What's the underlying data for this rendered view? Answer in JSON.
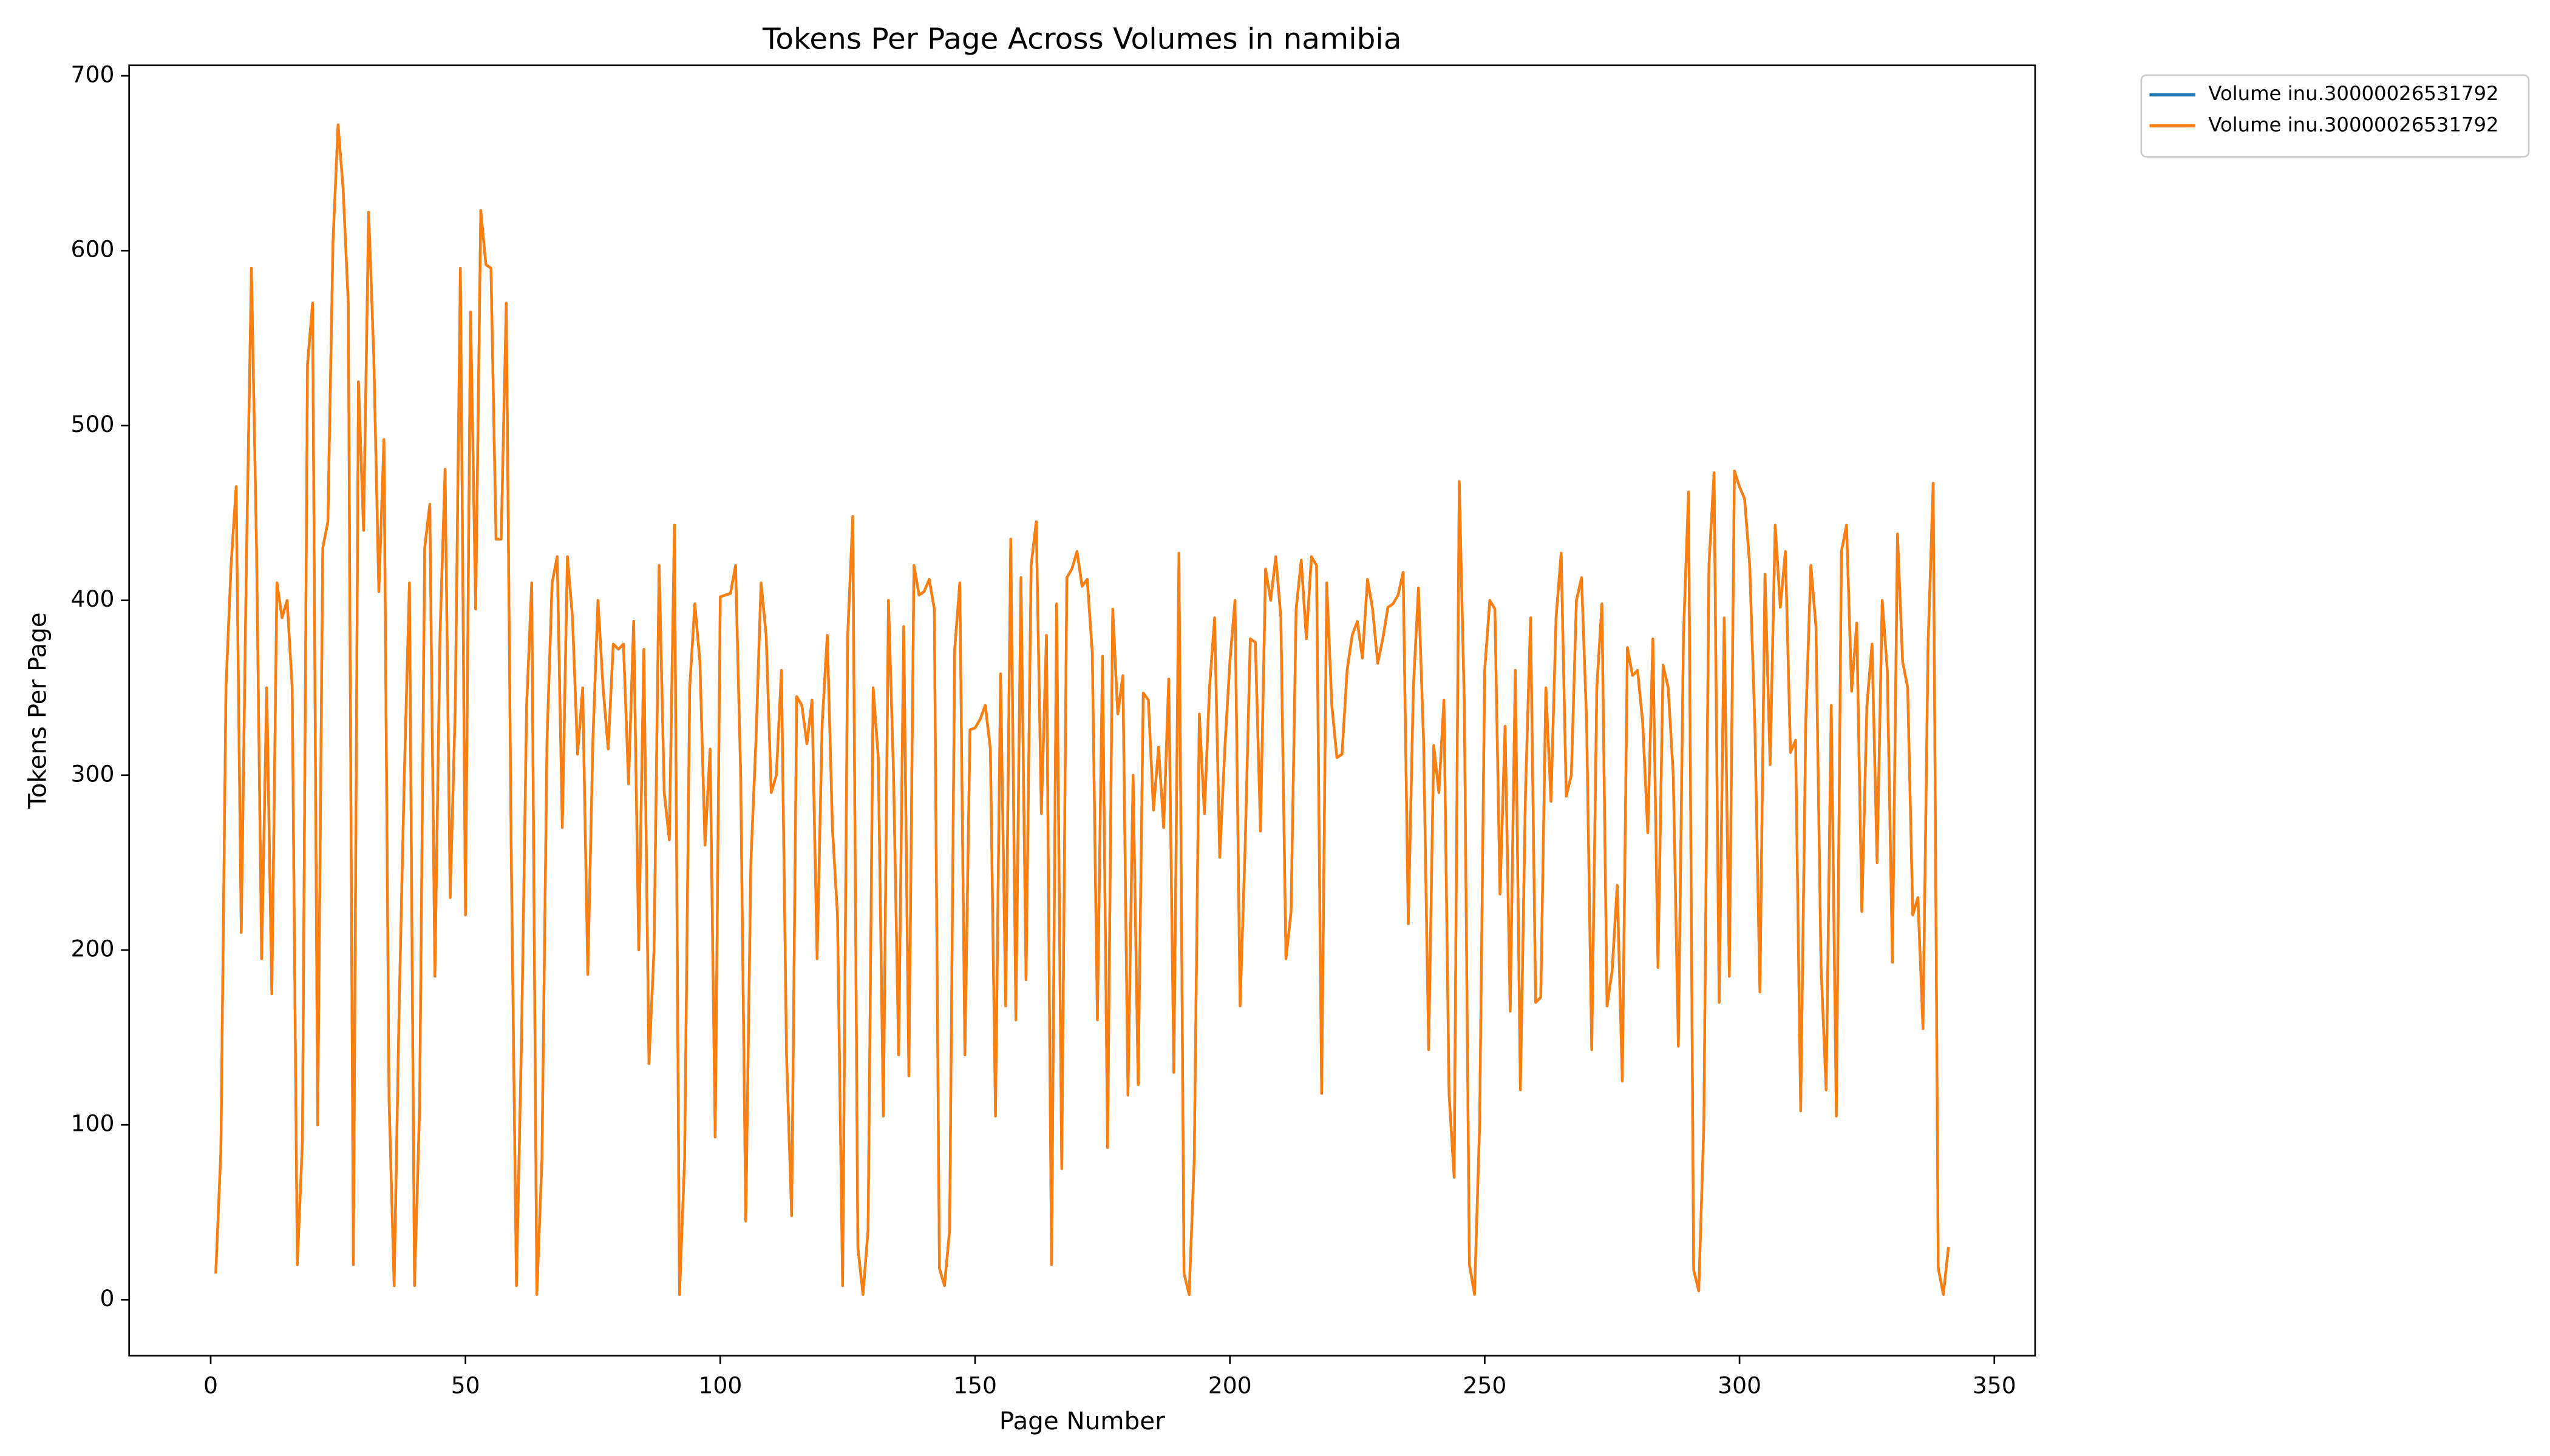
{
  "chart_data": {
    "type": "line",
    "title": "Tokens Per Page Across Volumes in namibia",
    "x_label": "Page Number",
    "y_label": "Tokens Per Page",
    "legend": "upper right outside",
    "xlim": [
      -16,
      358
    ],
    "ylim": [
      -32,
      706
    ],
    "xticks": [
      0,
      50,
      100,
      150,
      200,
      250,
      300,
      350
    ],
    "yticks": [
      0,
      100,
      200,
      300,
      400,
      500,
      600,
      700
    ],
    "x": [
      1,
      2,
      3,
      4,
      5,
      6,
      7,
      8,
      9,
      10,
      11,
      12,
      13,
      14,
      15,
      16,
      17,
      18,
      19,
      20,
      21,
      22,
      23,
      24,
      25,
      26,
      27,
      28,
      29,
      30,
      31,
      32,
      33,
      34,
      35,
      36,
      37,
      38,
      39,
      40,
      41,
      42,
      43,
      44,
      45,
      46,
      47,
      48,
      49,
      50,
      51,
      52,
      53,
      54,
      55,
      56,
      57,
      58,
      59,
      60,
      61,
      62,
      63,
      64,
      65,
      66,
      67,
      68,
      69,
      70,
      71,
      72,
      73,
      74,
      75,
      76,
      77,
      78,
      79,
      80,
      81,
      82,
      83,
      84,
      85,
      86,
      87,
      88,
      89,
      90,
      91,
      92,
      93,
      94,
      95,
      96,
      97,
      98,
      99,
      100,
      101,
      102,
      103,
      104,
      105,
      106,
      107,
      108,
      109,
      110,
      111,
      112,
      113,
      114,
      115,
      116,
      117,
      118,
      119,
      120,
      121,
      122,
      123,
      124,
      125,
      126,
      127,
      128,
      129,
      130,
      131,
      132,
      133,
      134,
      135,
      136,
      137,
      138,
      139,
      140,
      141,
      142,
      143,
      144,
      145,
      146,
      147,
      148,
      149,
      150,
      151,
      152,
      153,
      154,
      155,
      156,
      157,
      158,
      159,
      160,
      161,
      162,
      163,
      164,
      165,
      166,
      167,
      168,
      169,
      170,
      171,
      172,
      173,
      174,
      175,
      176,
      177,
      178,
      179,
      180,
      181,
      182,
      183,
      184,
      185,
      186,
      187,
      188,
      189,
      190,
      191,
      192,
      193,
      194,
      195,
      196,
      197,
      198,
      199,
      200,
      201,
      202,
      203,
      204,
      205,
      206,
      207,
      208,
      209,
      210,
      211,
      212,
      213,
      214,
      215,
      216,
      217,
      218,
      219,
      220,
      221,
      222,
      223,
      224,
      225,
      226,
      227,
      228,
      229,
      230,
      231,
      232,
      233,
      234,
      235,
      236,
      237,
      238,
      239,
      240,
      241,
      242,
      243,
      244,
      245,
      246,
      247,
      248,
      249,
      250,
      251,
      252,
      253,
      254,
      255,
      256,
      257,
      258,
      259,
      260,
      261,
      262,
      263,
      264,
      265,
      266,
      267,
      268,
      269,
      270,
      271,
      272,
      273,
      274,
      275,
      276,
      277,
      278,
      279,
      280,
      281,
      282,
      283,
      284,
      285,
      286,
      287,
      288,
      289,
      290,
      291,
      292,
      293,
      294,
      295,
      296,
      297,
      298,
      299,
      300,
      301,
      302,
      303,
      304,
      305,
      306,
      307,
      308,
      309,
      310,
      311,
      312,
      313,
      314,
      315,
      316,
      317,
      318,
      319,
      320,
      321,
      322,
      323,
      324,
      325,
      326,
      327,
      328,
      329,
      330,
      331,
      332,
      333,
      334,
      335,
      336,
      337,
      338,
      339,
      340,
      341
    ],
    "series": [
      {
        "name": "Volume inu.30000026531792",
        "color": "#1f77b4",
        "values": [
          15,
          85,
          350,
          420,
          465,
          210,
          420,
          590,
          430,
          195,
          350,
          175,
          410,
          390,
          400,
          350,
          20,
          90,
          535,
          570,
          100,
          430,
          445,
          605,
          672,
          635,
          570,
          20,
          525,
          440,
          622,
          540,
          405,
          492,
          115,
          8,
          170,
          300,
          410,
          8,
          110,
          430,
          455,
          185,
          380,
          475,
          230,
          340,
          590,
          220,
          565,
          395,
          623,
          592,
          590,
          435,
          435,
          570,
          250,
          8,
          150,
          340,
          410,
          3,
          80,
          320,
          410,
          425,
          270,
          425,
          390,
          312,
          350,
          186,
          320,
          400,
          350,
          315,
          375,
          372,
          375,
          295,
          388,
          200,
          372,
          135,
          200,
          420,
          290,
          263,
          443,
          3,
          80,
          350,
          398,
          365,
          260,
          315,
          93,
          402,
          403,
          404,
          420,
          300,
          45,
          250,
          320,
          410,
          380,
          290,
          300,
          360,
          140,
          48,
          345,
          340,
          318,
          343,
          195,
          330,
          380,
          270,
          220,
          8,
          380,
          448,
          30,
          3,
          40,
          350,
          310,
          105,
          400,
          300,
          140,
          385,
          128,
          420,
          403,
          405,
          412,
          395,
          18,
          8,
          40,
          372,
          410,
          140,
          326,
          327,
          332,
          340,
          315,
          105,
          358,
          168,
          435,
          160,
          413,
          183,
          420,
          445,
          278,
          380,
          20,
          398,
          75,
          413,
          418,
          428,
          408,
          412,
          370,
          160,
          368,
          87,
          395,
          335,
          357,
          117,
          300,
          123,
          347,
          343,
          280,
          316,
          270,
          355,
          130,
          427,
          15,
          3,
          80,
          335,
          278,
          350,
          390,
          253,
          315,
          365,
          400,
          168,
          260,
          378,
          376,
          268,
          418,
          400,
          425,
          390,
          195,
          222,
          395,
          423,
          378,
          425,
          420,
          118,
          410,
          340,
          310,
          312,
          360,
          380,
          388,
          367,
          412,
          395,
          364,
          378,
          396,
          398,
          403,
          416,
          215,
          350,
          407,
          320,
          143,
          317,
          290,
          343,
          118,
          70,
          468,
          340,
          20,
          3,
          100,
          360,
          400,
          395,
          232,
          328,
          165,
          360,
          120,
          290,
          390,
          170,
          173,
          350,
          285,
          390,
          427,
          288,
          300,
          400,
          413,
          330,
          143,
          350,
          398,
          168,
          188,
          237,
          125,
          373,
          357,
          360,
          330,
          267,
          378,
          190,
          363,
          350,
          300,
          145,
          380,
          462,
          17,
          5,
          100,
          420,
          473,
          170,
          390,
          185,
          474,
          465,
          458,
          420,
          330,
          176,
          415,
          306,
          443,
          396,
          428,
          313,
          320,
          108,
          330,
          420,
          385,
          190,
          120,
          340,
          105,
          428,
          443,
          348,
          387,
          222,
          340,
          375,
          250,
          400,
          360,
          193,
          438,
          365,
          350,
          220,
          230,
          155,
          375,
          467,
          18,
          3,
          30
        ]
      },
      {
        "name": "Volume inu.30000026531792",
        "color": "#ff7f0e",
        "values": [
          15,
          85,
          350,
          420,
          465,
          210,
          420,
          590,
          430,
          195,
          350,
          175,
          410,
          390,
          400,
          350,
          20,
          90,
          535,
          570,
          100,
          430,
          445,
          605,
          672,
          635,
          570,
          20,
          525,
          440,
          622,
          540,
          405,
          492,
          115,
          8,
          170,
          300,
          410,
          8,
          110,
          430,
          455,
          185,
          380,
          475,
          230,
          340,
          590,
          220,
          565,
          395,
          623,
          592,
          590,
          435,
          435,
          570,
          250,
          8,
          150,
          340,
          410,
          3,
          80,
          320,
          410,
          425,
          270,
          425,
          390,
          312,
          350,
          186,
          320,
          400,
          350,
          315,
          375,
          372,
          375,
          295,
          388,
          200,
          372,
          135,
          200,
          420,
          290,
          263,
          443,
          3,
          80,
          350,
          398,
          365,
          260,
          315,
          93,
          402,
          403,
          404,
          420,
          300,
          45,
          250,
          320,
          410,
          380,
          290,
          300,
          360,
          140,
          48,
          345,
          340,
          318,
          343,
          195,
          330,
          380,
          270,
          220,
          8,
          380,
          448,
          30,
          3,
          40,
          350,
          310,
          105,
          400,
          300,
          140,
          385,
          128,
          420,
          403,
          405,
          412,
          395,
          18,
          8,
          40,
          372,
          410,
          140,
          326,
          327,
          332,
          340,
          315,
          105,
          358,
          168,
          435,
          160,
          413,
          183,
          420,
          445,
          278,
          380,
          20,
          398,
          75,
          413,
          418,
          428,
          408,
          412,
          370,
          160,
          368,
          87,
          395,
          335,
          357,
          117,
          300,
          123,
          347,
          343,
          280,
          316,
          270,
          355,
          130,
          427,
          15,
          3,
          80,
          335,
          278,
          350,
          390,
          253,
          315,
          365,
          400,
          168,
          260,
          378,
          376,
          268,
          418,
          400,
          425,
          390,
          195,
          222,
          395,
          423,
          378,
          425,
          420,
          118,
          410,
          340,
          310,
          312,
          360,
          380,
          388,
          367,
          412,
          395,
          364,
          378,
          396,
          398,
          403,
          416,
          215,
          350,
          407,
          320,
          143,
          317,
          290,
          343,
          118,
          70,
          468,
          340,
          20,
          3,
          100,
          360,
          400,
          395,
          232,
          328,
          165,
          360,
          120,
          290,
          390,
          170,
          173,
          350,
          285,
          390,
          427,
          288,
          300,
          400,
          413,
          330,
          143,
          350,
          398,
          168,
          188,
          237,
          125,
          373,
          357,
          360,
          330,
          267,
          378,
          190,
          363,
          350,
          300,
          145,
          380,
          462,
          17,
          5,
          100,
          420,
          473,
          170,
          390,
          185,
          474,
          465,
          458,
          420,
          330,
          176,
          415,
          306,
          443,
          396,
          428,
          313,
          320,
          108,
          330,
          420,
          385,
          190,
          120,
          340,
          105,
          428,
          443,
          348,
          387,
          222,
          340,
          375,
          250,
          400,
          360,
          193,
          438,
          365,
          350,
          220,
          230,
          155,
          375,
          467,
          18,
          3,
          30
        ]
      }
    ]
  }
}
